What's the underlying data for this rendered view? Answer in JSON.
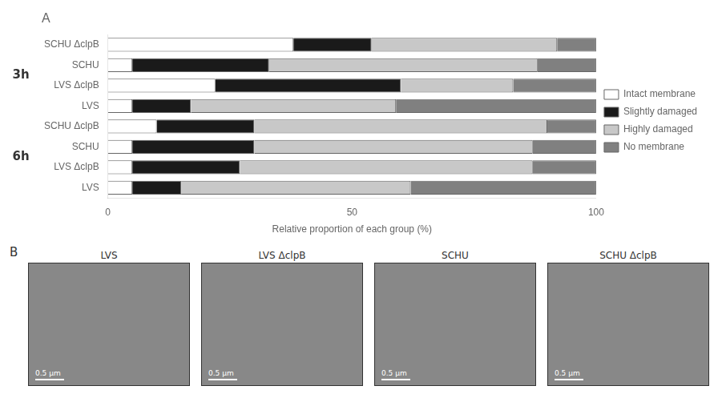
{
  "chart_data": {
    "type": "bar",
    "orientation": "horizontal",
    "stacked": true,
    "title": "A",
    "xlabel": "Relative proportion of each group (%)",
    "categories": [
      "SCHU ΔclpB",
      "SCHU",
      "LVS ΔclpB",
      "LVS",
      "SCHU ΔclpB",
      "SCHU",
      "LVS ΔclpB",
      "LVS"
    ],
    "category_groups": [
      "3h",
      "3h",
      "3h",
      "3h",
      "6h",
      "6h",
      "6h",
      "6h"
    ],
    "series": [
      {
        "name": "Intact membrane",
        "color": "#ffffff",
        "values": [
          38,
          5,
          22,
          5,
          10,
          5,
          5,
          5
        ]
      },
      {
        "name": "Slightly damaged",
        "color": "#1a1a1a",
        "values": [
          16,
          28,
          38,
          12,
          20,
          25,
          22,
          10
        ]
      },
      {
        "name": "Highly damaged",
        "color": "#c8c8c8",
        "values": [
          38,
          55,
          23,
          42,
          60,
          57,
          60,
          47
        ]
      },
      {
        "name": "No membrane",
        "color": "#808080",
        "values": [
          8,
          12,
          17,
          41,
          10,
          13,
          13,
          38
        ]
      }
    ],
    "xlim": [
      0,
      100
    ],
    "xticks": [
      0,
      50,
      100
    ],
    "grid": false,
    "legend": "right",
    "annotations": {
      "panel_title": "B",
      "image_labels": [
        "LVS",
        "LVS ΔclpB",
        "SCHU",
        "SCHU ΔclpB"
      ],
      "scale_bar": "0.5 μm"
    }
  }
}
